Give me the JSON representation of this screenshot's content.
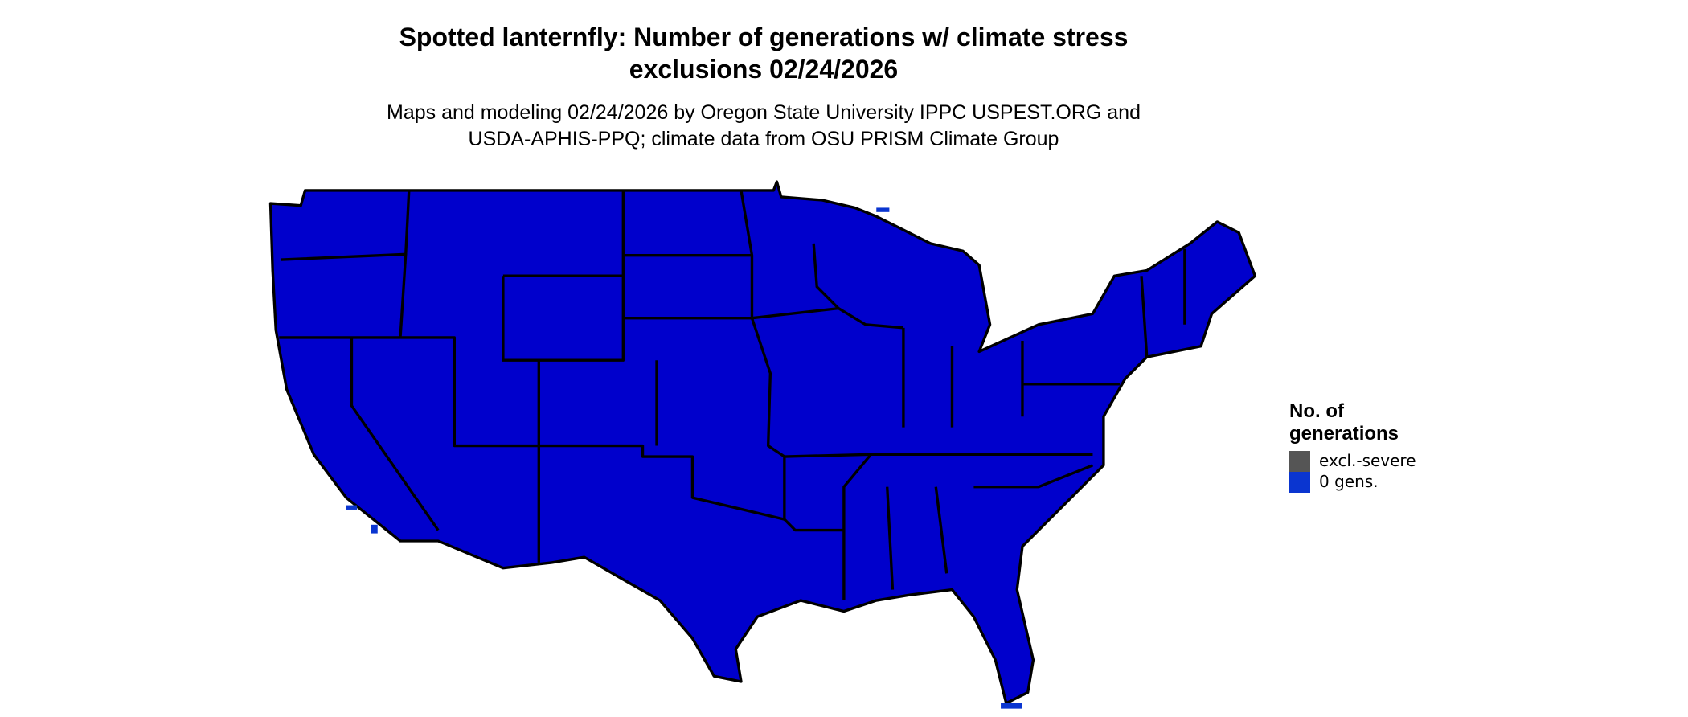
{
  "title": [
    "Spotted lanternfly: Number of generations w/ climate stress",
    "exclusions 02/24/2026"
  ],
  "subtitle": [
    "Maps and modeling 02/24/2026 by Oregon State University IPPC USPEST.ORG and",
    "USDA-APHIS-PPQ; climate data from OSU PRISM Climate Group"
  ],
  "legend": {
    "title": [
      "No. of",
      "generations"
    ],
    "items": [
      {
        "label": "excl.-severe",
        "color": "#555555"
      },
      {
        "label": "0 gens.",
        "color": "#0a35d0"
      }
    ]
  }
}
